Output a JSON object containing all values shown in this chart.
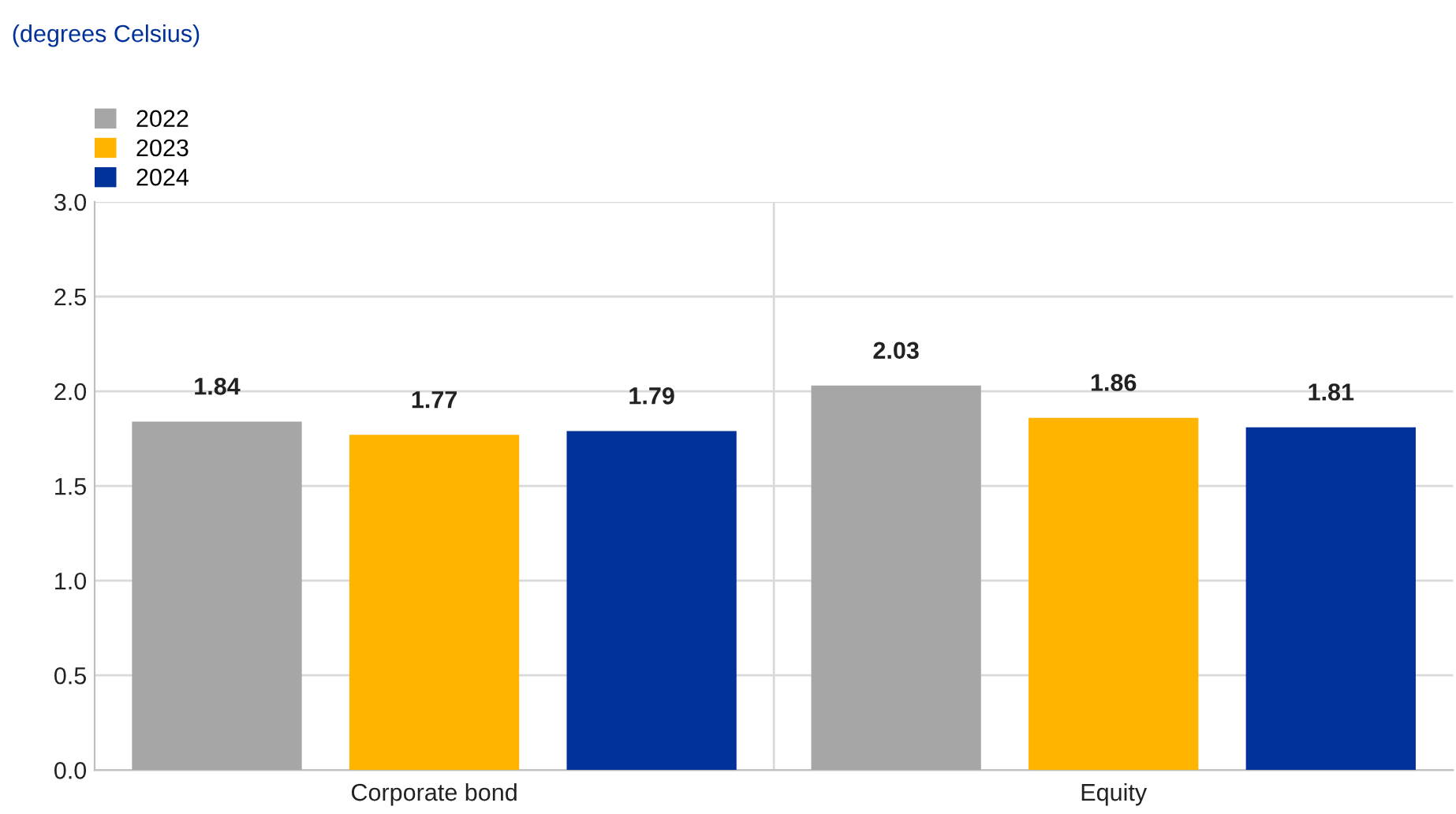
{
  "chart_data": {
    "type": "bar",
    "annotations": [
      "(degrees Celsius)"
    ],
    "categories": [
      "Corporate bond",
      "Equity"
    ],
    "series": [
      {
        "name": "2022",
        "color": "#a6a6a6",
        "values": [
          1.84,
          2.03
        ]
      },
      {
        "name": "2023",
        "color": "#ffb400",
        "values": [
          1.77,
          1.86
        ]
      },
      {
        "name": "2024",
        "color": "#003299",
        "values": [
          1.79,
          1.81
        ]
      }
    ],
    "ylim": [
      0,
      3.0
    ],
    "yticks": [
      {
        "value": 0,
        "label": "0.0"
      },
      {
        "value": 0.5,
        "label": "0.5"
      },
      {
        "value": 1.0,
        "label": "1.0"
      },
      {
        "value": 1.5,
        "label": "1.5"
      },
      {
        "value": 2.0,
        "label": "2.0"
      },
      {
        "value": 2.5,
        "label": "2.5"
      },
      {
        "value": 3.0,
        "label": "3.0"
      }
    ],
    "grid": "y",
    "legend": "top left",
    "data_labels": true
  }
}
